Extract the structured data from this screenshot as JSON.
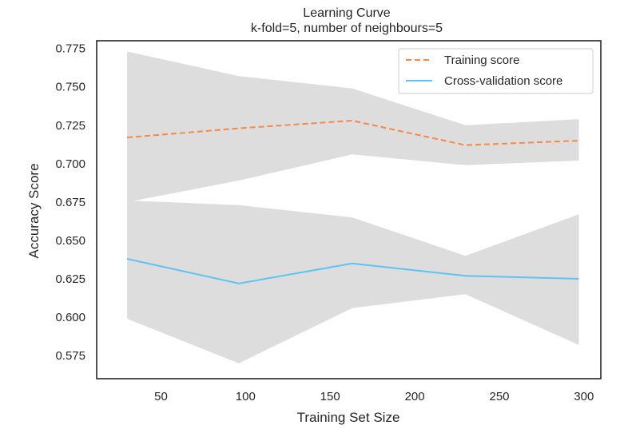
{
  "chart_data": {
    "type": "line",
    "title": "Learning Curve",
    "subtitle": "k-fold=5, number of neighbours=5",
    "xlabel": "Training Set Size",
    "ylabel": "Accuracy Score",
    "xlim": [
      12,
      310
    ],
    "ylim": [
      0.56,
      0.78
    ],
    "xticks": [
      50,
      100,
      150,
      200,
      250,
      300
    ],
    "xtick_labels": [
      "50",
      "100",
      "150",
      "200",
      "250",
      "300"
    ],
    "yticks": [
      0.575,
      0.6,
      0.625,
      0.65,
      0.675,
      0.7,
      0.725,
      0.75,
      0.775
    ],
    "ytick_labels": [
      "0.575",
      "0.600",
      "0.625",
      "0.650",
      "0.675",
      "0.700",
      "0.725",
      "0.750",
      "0.775"
    ],
    "x": [
      30,
      96,
      163,
      230,
      297
    ],
    "series": [
      {
        "name": "Training score",
        "color": "#f5884a",
        "dash": true,
        "values": [
          0.717,
          0.723,
          0.728,
          0.712,
          0.715
        ],
        "band_lower": [
          0.675,
          0.689,
          0.706,
          0.699,
          0.702
        ],
        "band_upper": [
          0.773,
          0.757,
          0.749,
          0.725,
          0.729
        ]
      },
      {
        "name": "Cross-validation score",
        "color": "#5ec2f2",
        "dash": false,
        "values": [
          0.638,
          0.622,
          0.635,
          0.627,
          0.625
        ],
        "band_lower": [
          0.599,
          0.57,
          0.606,
          0.615,
          0.582
        ],
        "band_upper": [
          0.676,
          0.673,
          0.665,
          0.64,
          0.667
        ]
      }
    ],
    "band_color": "#dddddd",
    "legend_position": "top-right",
    "grid": false
  }
}
